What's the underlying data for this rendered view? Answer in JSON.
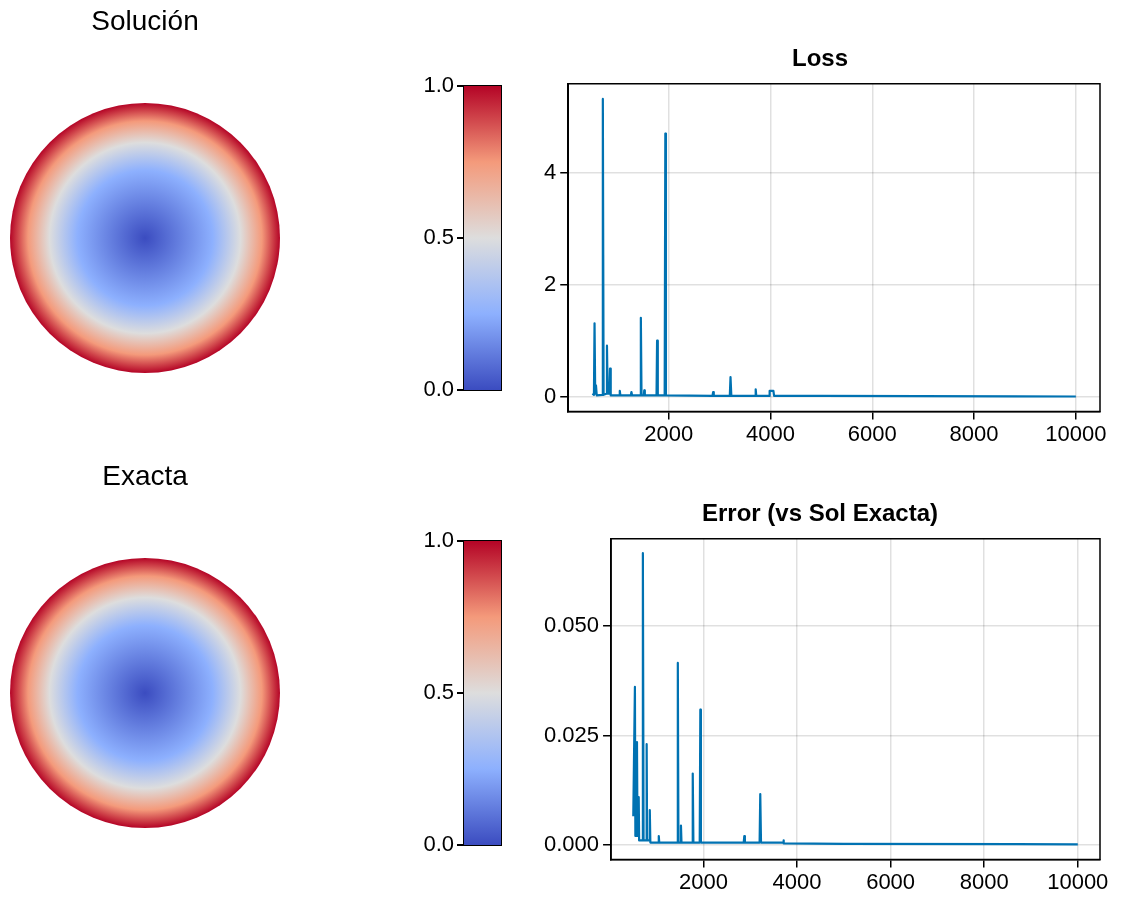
{
  "chart_data": [
    {
      "type": "other",
      "title": "Solución",
      "annotations": [
        "0.0",
        "0.5",
        "1.0"
      ]
    },
    {
      "type": "line",
      "title": "Loss",
      "grid": true,
      "marker": "none",
      "xlim": [
        25,
        10475
      ],
      "xticks": [
        2000,
        4000,
        6000,
        8000,
        10000
      ],
      "ylim": [
        -0.27,
        5.6
      ],
      "yticks": [
        0,
        2,
        4
      ],
      "series": [
        {
          "color": "#0072b2",
          "x": [
            500,
            530,
            542,
            555,
            570,
            585,
            690,
            705,
            720,
            775,
            786,
            800,
            835,
            846,
            860,
            1025,
            1038,
            1050,
            1255,
            1267,
            1280,
            1440,
            1452,
            1465,
            1510,
            1519,
            1530,
            1760,
            1771,
            1785,
            1920,
            1933,
            1945,
            2860,
            2873,
            2885,
            3200,
            3214,
            3230,
            3700,
            3709,
            3720,
            3975,
            3983,
            4057,
            4070,
            5000,
            10000
          ],
          "values": [
            0.05,
            0.03,
            1.31,
            0.05,
            0.2,
            0.02,
            0.03,
            5.33,
            0.03,
            0.05,
            0.91,
            0.05,
            0.05,
            0.5,
            0.02,
            0.02,
            0.1,
            0.02,
            0.02,
            0.08,
            0.02,
            0.02,
            1.41,
            0.02,
            0.02,
            0.11,
            0.02,
            0.02,
            1.0,
            0.02,
            0.02,
            4.71,
            0.02,
            0.01,
            0.08,
            0.01,
            0.01,
            0.35,
            0.01,
            0.01,
            0.13,
            0.01,
            0.01,
            0.1,
            0.1,
            0.01,
            0.01,
            0
          ]
        }
      ]
    },
    {
      "type": "other",
      "title": "Exacta",
      "annotations": [
        "0.0",
        "0.5",
        "1.0"
      ]
    },
    {
      "type": "line",
      "title": "Error (vs Sol Exacta)",
      "grid": true,
      "marker": "none",
      "xlim": [
        25,
        10475
      ],
      "xticks": [
        2000,
        4000,
        6000,
        8000,
        10000
      ],
      "ylim": [
        -0.0034,
        0.07
      ],
      "yticks": [
        {
          "value": 0,
          "label": "0.000"
        },
        {
          "value": 0.025,
          "label": "0.025"
        },
        {
          "value": 0.05,
          "label": "0.050"
        }
      ],
      "series": [
        {
          "color": "#0072b2",
          "x": [
            500,
            535,
            545,
            570,
            579,
            590,
            605,
            616,
            625,
            690,
            705,
            720,
            775,
            786,
            795,
            845,
            853,
            865,
            1035,
            1045,
            1055,
            1440,
            1452,
            1465,
            1510,
            1519,
            1530,
            1760,
            1771,
            1785,
            1920,
            1933,
            1945,
            2860,
            2873,
            2885,
            3200,
            3214,
            3230,
            3700,
            3709,
            3720,
            5000,
            10000
          ],
          "values": [
            0.0065,
            0.0361,
            0.002,
            0.002,
            0.0235,
            0.002,
            0.002,
            0.0109,
            0.001,
            0.001,
            0.0667,
            0.001,
            0.001,
            0.023,
            0.001,
            0.001,
            0.0079,
            0.0005,
            0.0005,
            0.002,
            0.0005,
            0.0005,
            0.0416,
            0.0005,
            0.0005,
            0.0044,
            0.0005,
            0.0005,
            0.0163,
            0.0005,
            0.0005,
            0.0309,
            0.0005,
            0.0005,
            0.002,
            0.0005,
            0.0005,
            0.0116,
            0.0005,
            0.0005,
            0.001,
            0.0003,
            0.0002,
            0.0001
          ]
        }
      ]
    }
  ]
}
